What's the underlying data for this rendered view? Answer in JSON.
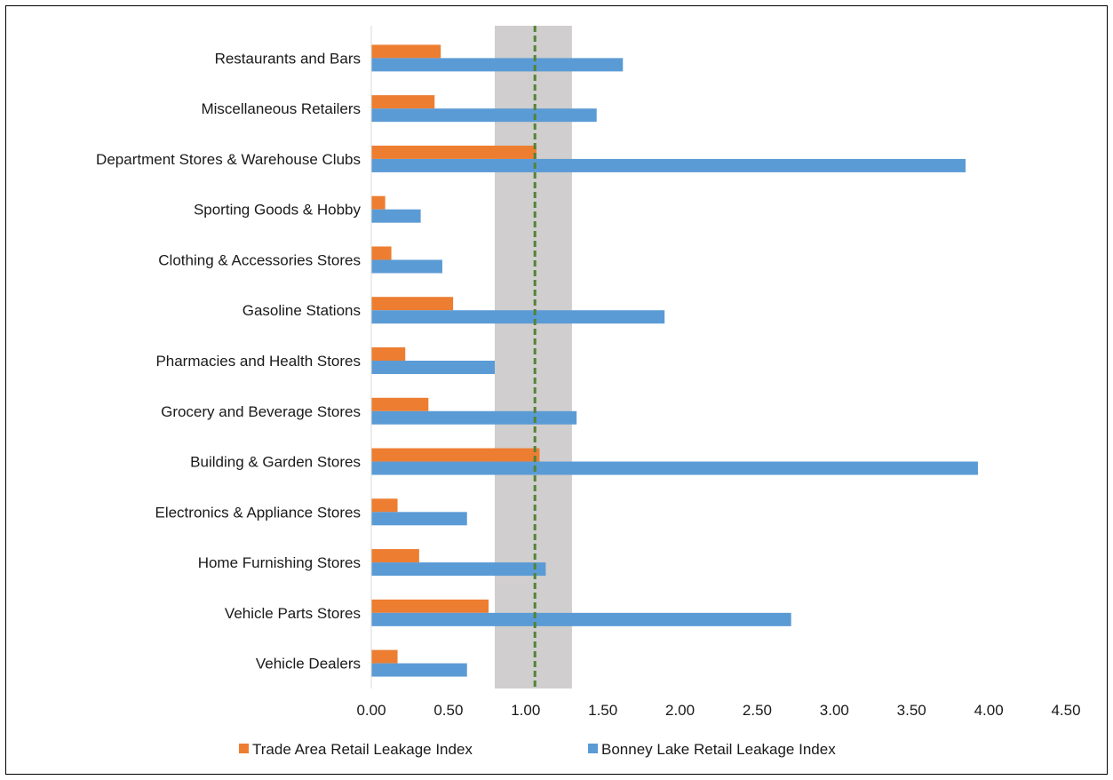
{
  "chart_data": {
    "type": "bar",
    "orientation": "horizontal",
    "title": "",
    "xlabel": "",
    "ylabel": "",
    "xlim": [
      0,
      4.5
    ],
    "x_ticks": [
      "0.00",
      "0.50",
      "1.00",
      "1.50",
      "2.00",
      "2.50",
      "3.00",
      "3.50",
      "4.00",
      "4.50"
    ],
    "categories": [
      "Vehicle Dealers",
      "Vehicle Parts Stores",
      "Home Furnishing Stores",
      "Electronics & Appliance Stores",
      "Building & Garden Stores",
      "Grocery and Beverage Stores",
      "Pharmacies and Health Stores",
      "Gasoline Stations",
      "Clothing & Accessories Stores",
      "Sporting Goods & Hobby",
      "Department Stores & Warehouse Clubs",
      "Miscellaneous Retailers",
      "Restaurants and Bars"
    ],
    "series": [
      {
        "name": "Trade Area Retail Leakage Index",
        "color": "#ED7D31",
        "values": [
          0.17,
          0.76,
          0.31,
          0.17,
          1.09,
          0.37,
          0.22,
          0.53,
          0.13,
          0.09,
          1.07,
          0.41,
          0.45
        ]
      },
      {
        "name": "Bonney Lake Retail Leakage Index",
        "color": "#5B9BD5",
        "values": [
          0.62,
          2.72,
          1.13,
          0.62,
          3.93,
          1.33,
          0.8,
          1.9,
          0.46,
          0.32,
          3.85,
          1.46,
          1.63
        ]
      }
    ],
    "reference_band": {
      "from": 0.8,
      "to": 1.3,
      "color": "#D0CECE"
    },
    "reference_line": {
      "value": 1.06,
      "color": "#548235",
      "style": "dashed"
    },
    "grid": false,
    "legend_position": "bottom"
  }
}
